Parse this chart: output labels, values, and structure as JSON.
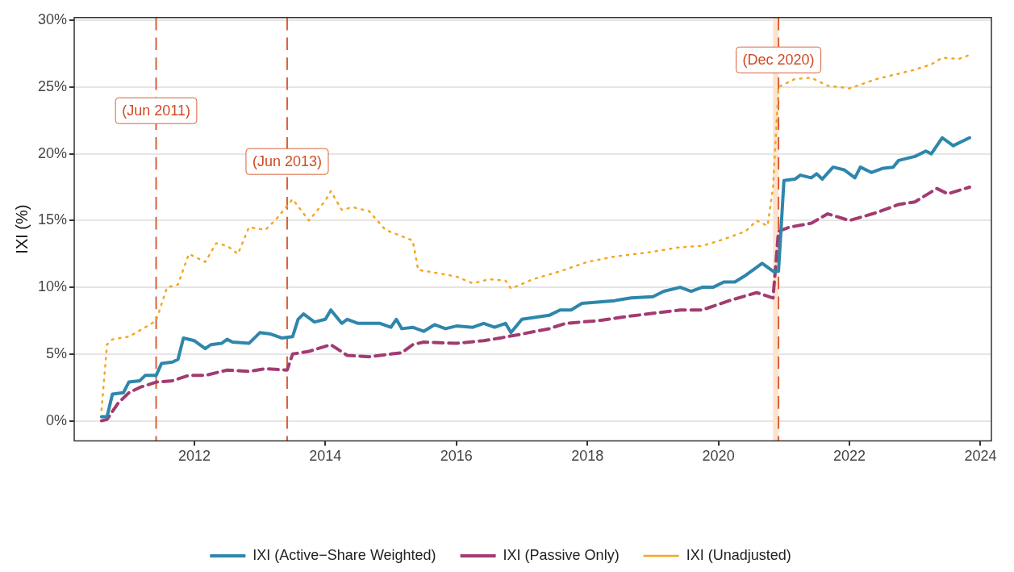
{
  "chart_data": {
    "type": "line",
    "ylabel": "IXI (%)",
    "xlim": [
      "2010-03",
      "2024-03"
    ],
    "xticks": [
      "2012",
      "2014",
      "2016",
      "2018",
      "2020",
      "2022",
      "2024"
    ],
    "ylim": [
      -1.5,
      30.2
    ],
    "yticks": [
      {
        "value": 0,
        "label": "0%"
      },
      {
        "value": 5,
        "label": "5%"
      },
      {
        "value": 10,
        "label": "10%"
      },
      {
        "value": 15,
        "label": "15%"
      },
      {
        "value": 20,
        "label": "20%"
      },
      {
        "value": 25,
        "label": "25%"
      },
      {
        "value": 30,
        "label": "30%"
      }
    ],
    "grid": "y",
    "legend": "bottom",
    "marker": "none",
    "series": [
      {
        "name": "IXI (Active−Share Weighted)",
        "color": "#2e86ab",
        "line_style": "solid",
        "x": [
          "2010-08",
          "2010-09",
          "2010-10",
          "2010-12",
          "2011-01",
          "2011-03",
          "2011-04",
          "2011-06",
          "2011-07",
          "2011-09",
          "2011-10",
          "2011-11",
          "2012-01",
          "2012-03",
          "2012-04",
          "2012-06",
          "2012-07",
          "2012-08",
          "2012-11",
          "2013-01",
          "2013-03",
          "2013-05",
          "2013-07",
          "2013-08",
          "2013-09",
          "2013-11",
          "2014-01",
          "2014-02",
          "2014-04",
          "2014-05",
          "2014-07",
          "2014-11",
          "2015-01",
          "2015-02",
          "2015-03",
          "2015-05",
          "2015-07",
          "2015-09",
          "2015-11",
          "2016-01",
          "2016-04",
          "2016-06",
          "2016-08",
          "2016-10",
          "2016-11",
          "2017-01",
          "2017-06",
          "2017-08",
          "2017-10",
          "2017-12",
          "2018-06",
          "2018-09",
          "2019-01",
          "2019-03",
          "2019-06",
          "2019-08",
          "2019-10",
          "2019-12",
          "2020-02",
          "2020-04",
          "2020-06",
          "2020-08",
          "2020-09",
          "2020-11",
          "2020-12",
          "2021-01",
          "2021-03",
          "2021-04",
          "2021-06",
          "2021-07",
          "2021-08",
          "2021-10",
          "2021-12",
          "2022-02",
          "2022-03",
          "2022-05",
          "2022-07",
          "2022-09",
          "2022-10",
          "2023-01",
          "2023-03",
          "2023-04",
          "2023-06",
          "2023-08",
          "2023-10",
          "2023-11"
        ],
        "values": [
          0.3,
          0.3,
          2.0,
          2.1,
          2.9,
          3.0,
          3.4,
          3.4,
          4.3,
          4.4,
          4.6,
          6.2,
          6.0,
          5.4,
          5.7,
          5.8,
          6.1,
          5.9,
          5.8,
          6.6,
          6.5,
          6.2,
          6.3,
          7.6,
          8.0,
          7.4,
          7.6,
          8.3,
          7.3,
          7.6,
          7.3,
          7.3,
          7.0,
          7.6,
          6.9,
          7.0,
          6.7,
          7.2,
          6.9,
          7.1,
          7.0,
          7.3,
          7.0,
          7.3,
          6.6,
          7.6,
          7.9,
          8.3,
          8.3,
          8.8,
          9.0,
          9.2,
          9.3,
          9.7,
          10.0,
          9.7,
          10.0,
          10.0,
          10.4,
          10.4,
          10.9,
          11.5,
          11.8,
          11.2,
          11.2,
          18.0,
          18.1,
          18.4,
          18.2,
          18.5,
          18.1,
          19.0,
          18.8,
          18.2,
          19.0,
          18.6,
          18.9,
          19.0,
          19.5,
          19.8,
          20.2,
          20.0,
          21.2,
          20.6,
          21.0,
          21.2
        ]
      },
      {
        "name": "IXI (Passive Only)",
        "color": "#a23b72",
        "line_style": "dashed",
        "x": [
          "2010-08",
          "2010-09",
          "2010-11",
          "2011-01",
          "2011-03",
          "2011-06",
          "2011-09",
          "2011-12",
          "2012-03",
          "2012-07",
          "2012-11",
          "2013-02",
          "2013-06",
          "2013-07",
          "2013-10",
          "2014-02",
          "2014-05",
          "2014-09",
          "2015-01",
          "2015-03",
          "2015-05",
          "2015-07",
          "2016-01",
          "2016-06",
          "2016-09",
          "2017-01",
          "2017-06",
          "2017-09",
          "2018-03",
          "2018-08",
          "2019-02",
          "2019-06",
          "2019-10",
          "2020-03",
          "2020-08",
          "2020-11",
          "2020-12",
          "2021-02",
          "2021-06",
          "2021-09",
          "2022-01",
          "2022-06",
          "2022-10",
          "2023-01",
          "2023-05",
          "2023-07",
          "2023-11"
        ],
        "values": [
          0.0,
          0.1,
          1.3,
          2.1,
          2.5,
          2.9,
          3.0,
          3.4,
          3.4,
          3.8,
          3.7,
          3.9,
          3.8,
          5.0,
          5.2,
          5.7,
          4.9,
          4.8,
          5.0,
          5.1,
          5.7,
          5.9,
          5.8,
          6.0,
          6.2,
          6.5,
          6.9,
          7.3,
          7.5,
          7.8,
          8.1,
          8.3,
          8.3,
          9.0,
          9.6,
          9.2,
          14.2,
          14.5,
          14.8,
          15.5,
          15.0,
          15.6,
          16.2,
          16.4,
          17.4,
          17.0,
          17.5
        ]
      },
      {
        "name": "IXI (Unadjusted)",
        "color": "#f5a623",
        "line_style": "dotted",
        "x": [
          "2010-08",
          "2010-09",
          "2010-10",
          "2011-01",
          "2011-04",
          "2011-06",
          "2011-08",
          "2011-10",
          "2011-12",
          "2012-03",
          "2012-05",
          "2012-07",
          "2012-09",
          "2012-11",
          "2013-02",
          "2013-04",
          "2013-07",
          "2013-10",
          "2014-01",
          "2014-02",
          "2014-04",
          "2014-06",
          "2014-09",
          "2014-12",
          "2015-05",
          "2015-06",
          "2015-09",
          "2016-01",
          "2016-04",
          "2016-07",
          "2016-10",
          "2016-11",
          "2017-03",
          "2017-08",
          "2018-01",
          "2018-06",
          "2018-12",
          "2019-06",
          "2019-10",
          "2020-02",
          "2020-06",
          "2020-08",
          "2020-10",
          "2020-11",
          "2020-12",
          "2021-03",
          "2021-06",
          "2021-09",
          "2022-01",
          "2022-06",
          "2022-09",
          "2023-01",
          "2023-04",
          "2023-06",
          "2023-09",
          "2023-11"
        ],
        "values": [
          0.8,
          5.7,
          6.1,
          6.3,
          7.0,
          7.5,
          10.0,
          10.2,
          12.5,
          11.9,
          13.3,
          13.1,
          12.5,
          14.5,
          14.3,
          15.1,
          16.6,
          15.0,
          16.5,
          17.2,
          15.8,
          16.0,
          15.7,
          14.3,
          13.5,
          11.3,
          11.1,
          10.8,
          10.3,
          10.6,
          10.5,
          9.9,
          10.6,
          11.2,
          11.9,
          12.3,
          12.6,
          13.0,
          13.1,
          13.6,
          14.2,
          15.0,
          14.6,
          17.5,
          25.0,
          25.6,
          25.7,
          25.1,
          24.9,
          25.6,
          25.9,
          26.3,
          26.7,
          27.2,
          27.1,
          27.4
        ]
      }
    ],
    "ref_lines": [
      {
        "axis": "x",
        "value": "2011-06",
        "label": "(Jun 2011)",
        "color": "#d9603b",
        "line_style": "dashed"
      },
      {
        "axis": "x",
        "value": "2013-06",
        "label": "(Jun 2013)",
        "color": "#d9603b",
        "line_style": "dashed"
      },
      {
        "axis": "x",
        "value": "2020-12",
        "label": "(Dec 2020)",
        "color": "#d9603b",
        "line_style": "dashed"
      }
    ],
    "bands": [
      {
        "axis": "x",
        "from": "2020-11",
        "to": "2020-12",
        "color": "#fbe3cc"
      }
    ]
  }
}
